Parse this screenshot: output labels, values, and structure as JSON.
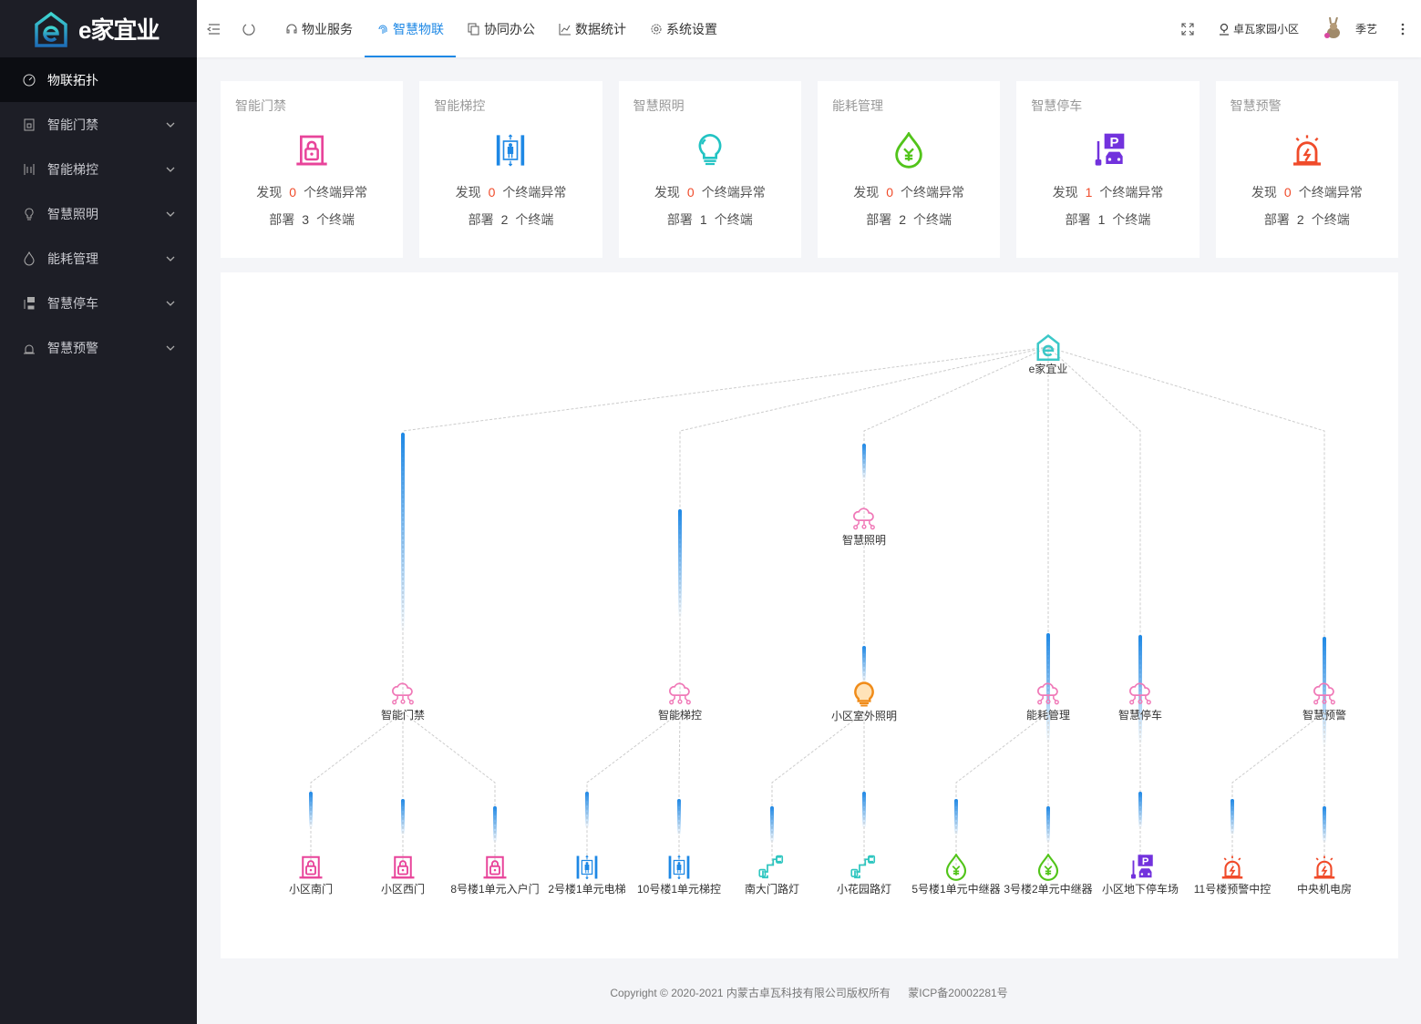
{
  "brand": {
    "name": "e家宜业"
  },
  "sidebar": {
    "items": [
      {
        "label": "物联拓扑",
        "icon": "dashboard-icon",
        "active": true
      },
      {
        "label": "智能门禁",
        "icon": "door-lock-icon"
      },
      {
        "label": "智能梯控",
        "icon": "elevator-icon"
      },
      {
        "label": "智慧照明",
        "icon": "bulb-icon"
      },
      {
        "label": "能耗管理",
        "icon": "energy-icon"
      },
      {
        "label": "智慧停车",
        "icon": "parking-icon"
      },
      {
        "label": "智慧预警",
        "icon": "alarm-icon"
      }
    ]
  },
  "topbar": {
    "nav": [
      {
        "label": "物业服务",
        "icon": "headset-icon"
      },
      {
        "label": "智慧物联",
        "icon": "fingerprint-icon",
        "active": true
      },
      {
        "label": "协同办公",
        "icon": "copy-icon"
      },
      {
        "label": "数据统计",
        "icon": "chart-icon"
      },
      {
        "label": "系统设置",
        "icon": "gear-icon"
      }
    ],
    "location": "卓瓦家园小区",
    "user": "季艺"
  },
  "cards": [
    {
      "title": "智能门禁",
      "icon": "lock",
      "color": "#e8449a",
      "found_prefix": "发现",
      "abnormal": 0,
      "found_suffix": "个终端异常",
      "deploy_prefix": "部署",
      "deployed": 3,
      "deploy_suffix": "个终端"
    },
    {
      "title": "智能梯控",
      "icon": "elevator",
      "color": "#1e88e5",
      "found_prefix": "发现",
      "abnormal": 0,
      "found_suffix": "个终端异常",
      "deploy_prefix": "部署",
      "deployed": 2,
      "deploy_suffix": "个终端"
    },
    {
      "title": "智慧照明",
      "icon": "bulb",
      "color": "#22c3c3",
      "found_prefix": "发现",
      "abnormal": 0,
      "found_suffix": "个终端异常",
      "deploy_prefix": "部署",
      "deployed": 1,
      "deploy_suffix": "个终端"
    },
    {
      "title": "能耗管理",
      "icon": "yen",
      "color": "#52c41a",
      "found_prefix": "发现",
      "abnormal": 0,
      "found_suffix": "个终端异常",
      "deploy_prefix": "部署",
      "deployed": 2,
      "deploy_suffix": "个终端"
    },
    {
      "title": "智慧停车",
      "icon": "parking",
      "color": "#7232dd",
      "found_prefix": "发现",
      "abnormal": 1,
      "found_suffix": "个终端异常",
      "deploy_prefix": "部署",
      "deployed": 1,
      "deploy_suffix": "个终端"
    },
    {
      "title": "智慧预警",
      "icon": "alarm",
      "color": "#f04b2a",
      "found_prefix": "发现",
      "abnormal": 0,
      "found_suffix": "个终端异常",
      "deploy_prefix": "部署",
      "deployed": 2,
      "deploy_suffix": "个终端"
    }
  ],
  "topology": {
    "root": {
      "label": "e家宜业",
      "icon": "logo"
    },
    "groups": [
      {
        "label": "智能门禁",
        "icon": "cloud",
        "children": [
          {
            "label": "小区南门",
            "icon": "lock"
          },
          {
            "label": "小区西门",
            "icon": "lock"
          },
          {
            "label": "8号楼1单元入户门",
            "icon": "lock"
          }
        ]
      },
      {
        "label": "智能梯控",
        "icon": "cloud",
        "children": [
          {
            "label": "2号楼1单元电梯",
            "icon": "elevator"
          },
          {
            "label": "10号楼1单元梯控",
            "icon": "elevator"
          }
        ]
      },
      {
        "label": "智慧照明",
        "icon": "cloud",
        "sub": {
          "label": "小区室外照明",
          "icon": "bulb-orange"
        },
        "children": [
          {
            "label": "南大门路灯",
            "icon": "streetlight"
          },
          {
            "label": "小花园路灯",
            "icon": "streetlight"
          }
        ]
      },
      {
        "label": "能耗管理",
        "icon": "cloud",
        "children": [
          {
            "label": "5号楼1单元中继器",
            "icon": "yen"
          },
          {
            "label": "3号楼2单元中继器",
            "icon": "yen"
          }
        ]
      },
      {
        "label": "智慧停车",
        "icon": "cloud",
        "children": [
          {
            "label": "小区地下停车场",
            "icon": "parking"
          }
        ]
      },
      {
        "label": "智慧预警",
        "icon": "cloud",
        "children": [
          {
            "label": "11号楼预警中控",
            "icon": "alarm"
          },
          {
            "label": "中央机电房",
            "icon": "alarm"
          }
        ]
      }
    ]
  },
  "footer": {
    "copyright": "Copyright © 2020-2021 内蒙古卓瓦科技有限公司版权所有",
    "icp": "蒙ICP备20002281号"
  }
}
